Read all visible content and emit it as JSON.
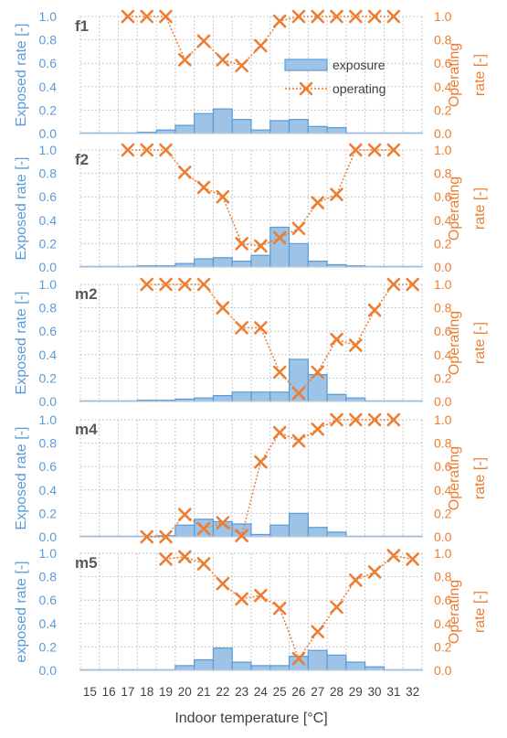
{
  "chart_data": {
    "type": "bar",
    "x": [
      15,
      16,
      17,
      18,
      19,
      20,
      21,
      22,
      23,
      24,
      25,
      26,
      27,
      28,
      29,
      30,
      31,
      32
    ],
    "x_tick_labels": [
      "15",
      "16",
      "17",
      "18",
      "19",
      "20",
      "21",
      "22",
      "23",
      "24",
      "25",
      "26",
      "27",
      "28",
      "29",
      "30",
      "31",
      "32"
    ],
    "xlabel": "Indoor temperature [°C]",
    "legend": {
      "position": "top-right",
      "bar_label": "exposure",
      "line_label": "operating"
    },
    "colors": {
      "exposure_fill": "#9dc3e6",
      "exposure_edge": "#5b9bd5",
      "operating": "#ed7d31",
      "left_axis": "#5b9bd5",
      "right_axis": "#ed7d31"
    },
    "y_tick_labels": [
      "0.0",
      "0.2",
      "0.4",
      "0.6",
      "0.8",
      "1.0"
    ],
    "ylim": [
      0,
      1
    ],
    "panels": [
      {
        "label": "f1",
        "ylabel_left": "Exposed rate [-]",
        "ylabel_right": "Operating rate [-]",
        "exposure": [
          0,
          0,
          0,
          0.01,
          0.03,
          0.07,
          0.17,
          0.21,
          0.12,
          0.03,
          0.11,
          0.12,
          0.06,
          0.05,
          0,
          0,
          0,
          0
        ],
        "operating": [
          null,
          null,
          1.0,
          1.0,
          1.0,
          0.63,
          0.79,
          0.63,
          0.58,
          0.75,
          0.96,
          1.0,
          1.0,
          1.0,
          1.0,
          1.0,
          1.0,
          null
        ]
      },
      {
        "label": "f2",
        "ylabel_left": "Exposed rate [-]",
        "ylabel_right": "Operating rate [-]",
        "exposure": [
          0,
          0,
          0,
          0.01,
          0.01,
          0.03,
          0.07,
          0.08,
          0.05,
          0.1,
          0.34,
          0.2,
          0.05,
          0.02,
          0.01,
          0,
          0,
          0
        ],
        "operating": [
          null,
          null,
          1.0,
          1.0,
          1.0,
          0.81,
          0.68,
          0.6,
          0.2,
          0.18,
          0.25,
          0.33,
          0.55,
          0.62,
          1.0,
          1.0,
          1.0,
          null
        ]
      },
      {
        "label": "m2",
        "ylabel_left": "Exposed rate [-]",
        "ylabel_right": "Operating rate [-]",
        "exposure": [
          0,
          0,
          0,
          0.01,
          0.01,
          0.02,
          0.03,
          0.05,
          0.08,
          0.08,
          0.08,
          0.36,
          0.23,
          0.06,
          0.03,
          0,
          0,
          0
        ],
        "operating": [
          null,
          null,
          null,
          1.0,
          1.0,
          1.0,
          1.0,
          0.8,
          0.63,
          0.63,
          0.25,
          0.07,
          0.25,
          0.53,
          0.48,
          0.78,
          1.0,
          1.0
        ]
      },
      {
        "label": "m4",
        "ylabel_left": "Exposed rate [-]",
        "ylabel_right": "Operating rate [-]",
        "exposure": [
          0,
          0,
          0,
          0,
          0.01,
          0.1,
          0.15,
          0.13,
          0.11,
          0.02,
          0.1,
          0.2,
          0.08,
          0.04,
          0,
          0,
          0,
          0
        ],
        "operating": [
          null,
          null,
          null,
          0.0,
          0.0,
          0.19,
          0.07,
          0.12,
          0.01,
          0.64,
          0.89,
          0.82,
          0.92,
          1.0,
          1.0,
          1.0,
          1.0,
          null
        ]
      },
      {
        "label": "m5",
        "ylabel_left": "exposed rate [-]",
        "ylabel_right": "Operating rate [-]",
        "exposure": [
          0,
          0,
          0,
          0,
          0,
          0.04,
          0.09,
          0.19,
          0.07,
          0.04,
          0.04,
          0.12,
          0.17,
          0.13,
          0.07,
          0.03,
          0,
          0
        ],
        "operating": [
          null,
          null,
          null,
          null,
          0.95,
          0.97,
          0.91,
          0.74,
          0.61,
          0.64,
          0.53,
          0.1,
          0.33,
          0.54,
          0.77,
          0.84,
          0.98,
          0.95
        ]
      }
    ]
  }
}
